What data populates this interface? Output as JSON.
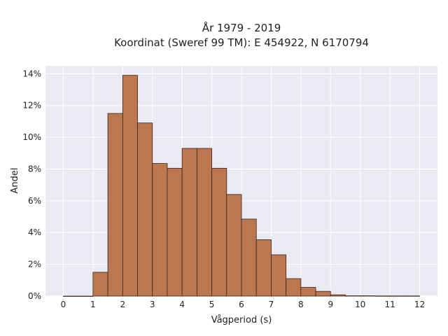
{
  "chart_data": {
    "type": "bar",
    "title_line1": "År 1979 - 2019",
    "title_line2": "Koordinat (Sweref 99 TM): E 454922, N 6170794",
    "xlabel": "Vågperiod (s)",
    "ylabel": "Andel",
    "bin_width": 0.5,
    "bins": [
      {
        "x0": 0.0,
        "value": 0.0
      },
      {
        "x0": 0.5,
        "value": 0.0
      },
      {
        "x0": 1.0,
        "value": 1.5
      },
      {
        "x0": 1.5,
        "value": 11.5
      },
      {
        "x0": 2.0,
        "value": 13.9
      },
      {
        "x0": 2.5,
        "value": 10.9
      },
      {
        "x0": 3.0,
        "value": 8.35
      },
      {
        "x0": 3.5,
        "value": 8.05
      },
      {
        "x0": 4.0,
        "value": 9.3
      },
      {
        "x0": 4.5,
        "value": 9.3
      },
      {
        "x0": 5.0,
        "value": 8.05
      },
      {
        "x0": 5.5,
        "value": 6.4
      },
      {
        "x0": 6.0,
        "value": 4.85
      },
      {
        "x0": 6.5,
        "value": 3.55
      },
      {
        "x0": 7.0,
        "value": 2.6
      },
      {
        "x0": 7.5,
        "value": 1.1
      },
      {
        "x0": 8.0,
        "value": 0.55
      },
      {
        "x0": 8.5,
        "value": 0.3
      },
      {
        "x0": 9.0,
        "value": 0.08
      },
      {
        "x0": 9.5,
        "value": 0.02
      },
      {
        "x0": 10.0,
        "value": 0.02
      },
      {
        "x0": 10.5,
        "value": 0.01
      },
      {
        "x0": 11.0,
        "value": 0.01
      },
      {
        "x0": 11.5,
        "value": 0.01
      }
    ],
    "xlim": [
      -0.6,
      12.6
    ],
    "ylim": [
      0,
      14.5
    ],
    "xticks": [
      0,
      1,
      2,
      3,
      4,
      5,
      6,
      7,
      8,
      9,
      10,
      11,
      12
    ],
    "yticks": [
      0,
      2,
      4,
      6,
      8,
      10,
      12,
      14
    ],
    "ytick_labels": [
      "0%",
      "2%",
      "4%",
      "6%",
      "8%",
      "10%",
      "12%",
      "14%"
    ],
    "grid": true,
    "colors": {
      "bar_fill": "#bc7750",
      "bar_edge": "#3a2418",
      "plot_bg": "#eaeaf2",
      "grid": "#ffffff"
    }
  }
}
